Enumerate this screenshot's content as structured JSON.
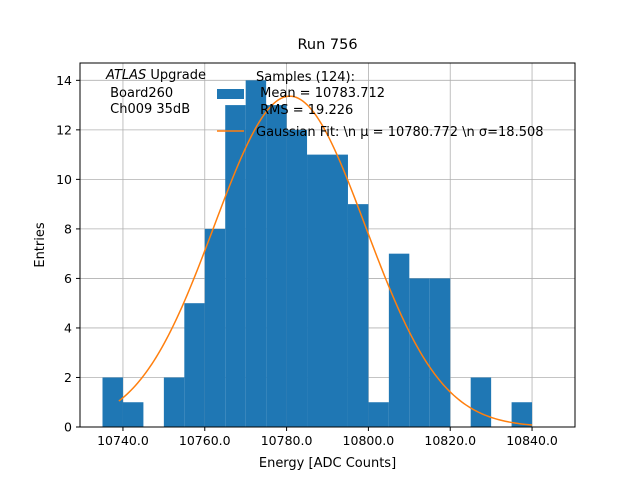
{
  "chart_data": {
    "type": "bar",
    "title": "Run 756",
    "xlabel": "Energy [ADC Counts]",
    "ylabel": "Entries",
    "xlim": [
      10729.5,
      10850.5
    ],
    "ylim": [
      0,
      14.7
    ],
    "grid": true,
    "bin_edges": [
      10735,
      10740,
      10745,
      10750,
      10755,
      10760,
      10765,
      10770,
      10775,
      10780,
      10785,
      10790,
      10795,
      10800,
      10805,
      10810,
      10815,
      10820,
      10825,
      10830,
      10835,
      10840,
      10845
    ],
    "counts": [
      2,
      1,
      0,
      2,
      5,
      8,
      13,
      14,
      13,
      12,
      11,
      11,
      9,
      1,
      7,
      6,
      6,
      0,
      2,
      0,
      1,
      0
    ],
    "xticks": [
      10740,
      10760,
      10780,
      10800,
      10820,
      10840
    ],
    "xtick_labels": [
      "10740.0",
      "10760.0",
      "10780.0",
      "10800.0",
      "10820.0",
      "10840.0"
    ],
    "yticks": [
      0,
      2,
      4,
      6,
      8,
      10,
      12,
      14
    ],
    "ytick_labels": [
      "0",
      "2",
      "4",
      "6",
      "8",
      "10",
      "12",
      "14"
    ],
    "fit": {
      "type": "gaussian",
      "mu": 10780.772,
      "sigma": 18.508,
      "amplitude": 13.36,
      "x_range": [
        10739,
        10840
      ]
    },
    "colors": {
      "bars": "#1f77b4",
      "fit": "#ff7f0e",
      "grid": "#b0b0b0"
    },
    "legend": {
      "placement": "top-center",
      "entries": [
        {
          "lines": [
            "Samples (124):",
            " Mean = 10783.712",
            " RMS = 19.226"
          ]
        },
        {
          "lines": [
            "Gaussian Fit: \\n μ = 10780.772 \\n σ=18.508"
          ]
        }
      ]
    },
    "annotation": {
      "italic": "ATLAS",
      "rest": " Upgrade",
      "lines": [
        " Board260",
        " Ch009 35dB"
      ]
    }
  }
}
